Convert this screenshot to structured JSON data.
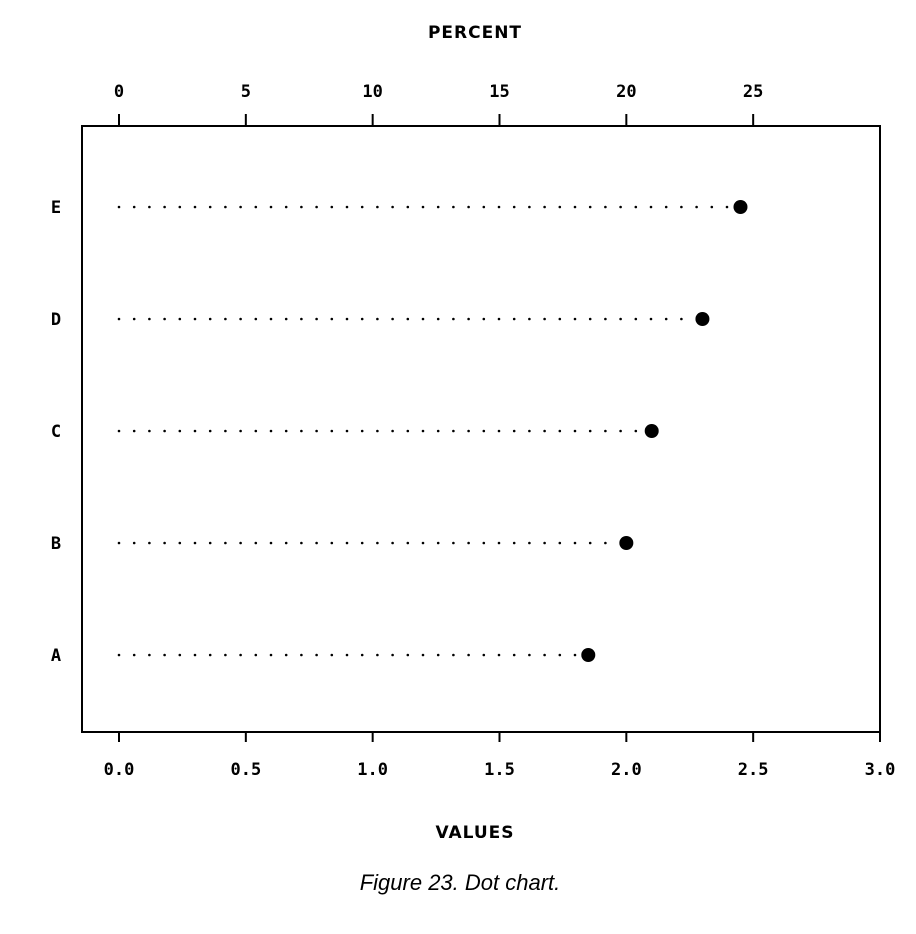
{
  "chart_data": {
    "type": "scatter",
    "subtype": "dot-chart",
    "categories": [
      "A",
      "B",
      "C",
      "D",
      "E"
    ],
    "values": [
      1.85,
      2.0,
      2.1,
      2.3,
      2.45
    ],
    "bottom_axis": {
      "label": "VALUES",
      "range": [
        0.0,
        3.0
      ],
      "ticks": [
        0.0,
        0.5,
        1.0,
        1.5,
        2.0,
        2.5,
        3.0
      ],
      "tick_labels": [
        "0.0",
        "0.5",
        "1.0",
        "1.5",
        "2.0",
        "2.5",
        "3.0"
      ]
    },
    "top_axis": {
      "label": "PERCENT",
      "ticks": [
        0,
        5,
        10,
        15,
        20,
        25
      ],
      "tick_labels": [
        "0",
        "5",
        "10",
        "15",
        "20",
        "25"
      ]
    },
    "grid": false,
    "legend": "none",
    "leader_lines": "dotted",
    "marker": "filled-circle",
    "colors": {
      "ink": "#000000",
      "background": "#ffffff"
    }
  },
  "caption": "Figure 23. Dot chart."
}
